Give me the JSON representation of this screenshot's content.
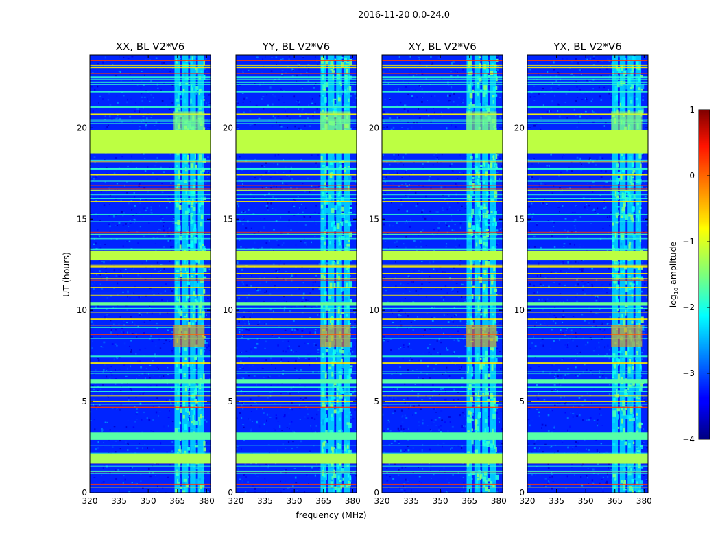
{
  "chart_data": {
    "type": "heatmap",
    "suptitle": "2016-11-20 0.0-24.0",
    "xlabel": "frequency (MHz)",
    "ylabel": "UT (hours)",
    "xlim": [
      320,
      382
    ],
    "ylim": [
      0,
      24
    ],
    "xticks": [
      320,
      335,
      350,
      365,
      380
    ],
    "yticks": [
      0,
      5,
      10,
      15,
      20
    ],
    "colorbar": {
      "label": "log10 amplitude",
      "label_base": "log",
      "label_sub": "10",
      "label_rest": " amplitude",
      "range": [
        -4,
        1
      ],
      "ticks": [
        "1",
        "0",
        "−1",
        "−2",
        "−3",
        "−4"
      ],
      "colormap": "jet"
    },
    "background_level": -3.2,
    "rfi_band_mhz": [
      363,
      381
    ],
    "rfi_channels_mhz": [
      [
        363.5,
        366.5
      ],
      [
        367.5,
        370.5
      ],
      [
        371.5,
        374.5
      ],
      [
        375.5,
        378.5
      ]
    ],
    "flagged_rows_hours": [
      {
        "range": [
          18.6,
          19.9
        ],
        "level": -1.2
      },
      {
        "range": [
          12.75,
          13.25
        ],
        "level": -1.2
      },
      {
        "range": [
          10.25,
          10.45
        ],
        "level": -1.6
      },
      {
        "range": [
          1.65,
          2.15
        ],
        "level": -1.3
      },
      {
        "range": [
          6.0,
          6.2
        ],
        "level": -1.7
      },
      {
        "range": [
          2.9,
          3.3
        ],
        "level": -1.7
      }
    ],
    "panels": [
      {
        "title": "XX, BL V2*V6",
        "correlation": "XX",
        "baseline": "V2*V6"
      },
      {
        "title": "YY, BL V2*V6",
        "correlation": "YY",
        "baseline": "V2*V6"
      },
      {
        "title": "XY, BL V2*V6",
        "correlation": "XY",
        "baseline": "V2*V6"
      },
      {
        "title": "YX, BL V2*V6",
        "correlation": "YX",
        "baseline": "V2*V6"
      }
    ]
  }
}
